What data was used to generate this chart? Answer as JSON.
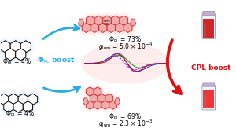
{
  "bg_color": "#ffffff",
  "left_top_label": "Φ$_\\mathrm{PL}$ = 4%",
  "left_bot_label": "Φ$_\\mathrm{PL}$ = 4%",
  "center_top_phi": "Φ$_\\mathrm{PL}$ = 73%",
  "center_top_g": "$g_\\mathrm{lum}$ = 5.0 × 10$^{-4}$",
  "center_bot_phi": "Φ$_\\mathrm{PL}$ = 69%",
  "center_bot_g": "$g_\\mathrm{lum}$ = 2.3 × 10$^{-3}$",
  "phi_boost_label": "Φ$_\\mathrm{PL}$ boost",
  "cpl_boost_label": "CPL boost",
  "arrow_color_blue": "#29ABE2",
  "arrow_color_red": "#DD1111",
  "mol_blue_fill": "#C8E8F8",
  "mol_blue_edge": "#5599CC",
  "mol_red_fill": "#F2AAAA",
  "mol_red_edge": "#CC3333",
  "spectra_colors": [
    "#0000DD",
    "#008800",
    "#CC0000",
    "#9900CC"
  ],
  "vial_liquid_top": "#CC1111",
  "vial_liquid_bot": "#EE2222",
  "label_fs": 5.5,
  "boost_fs": 6.5
}
